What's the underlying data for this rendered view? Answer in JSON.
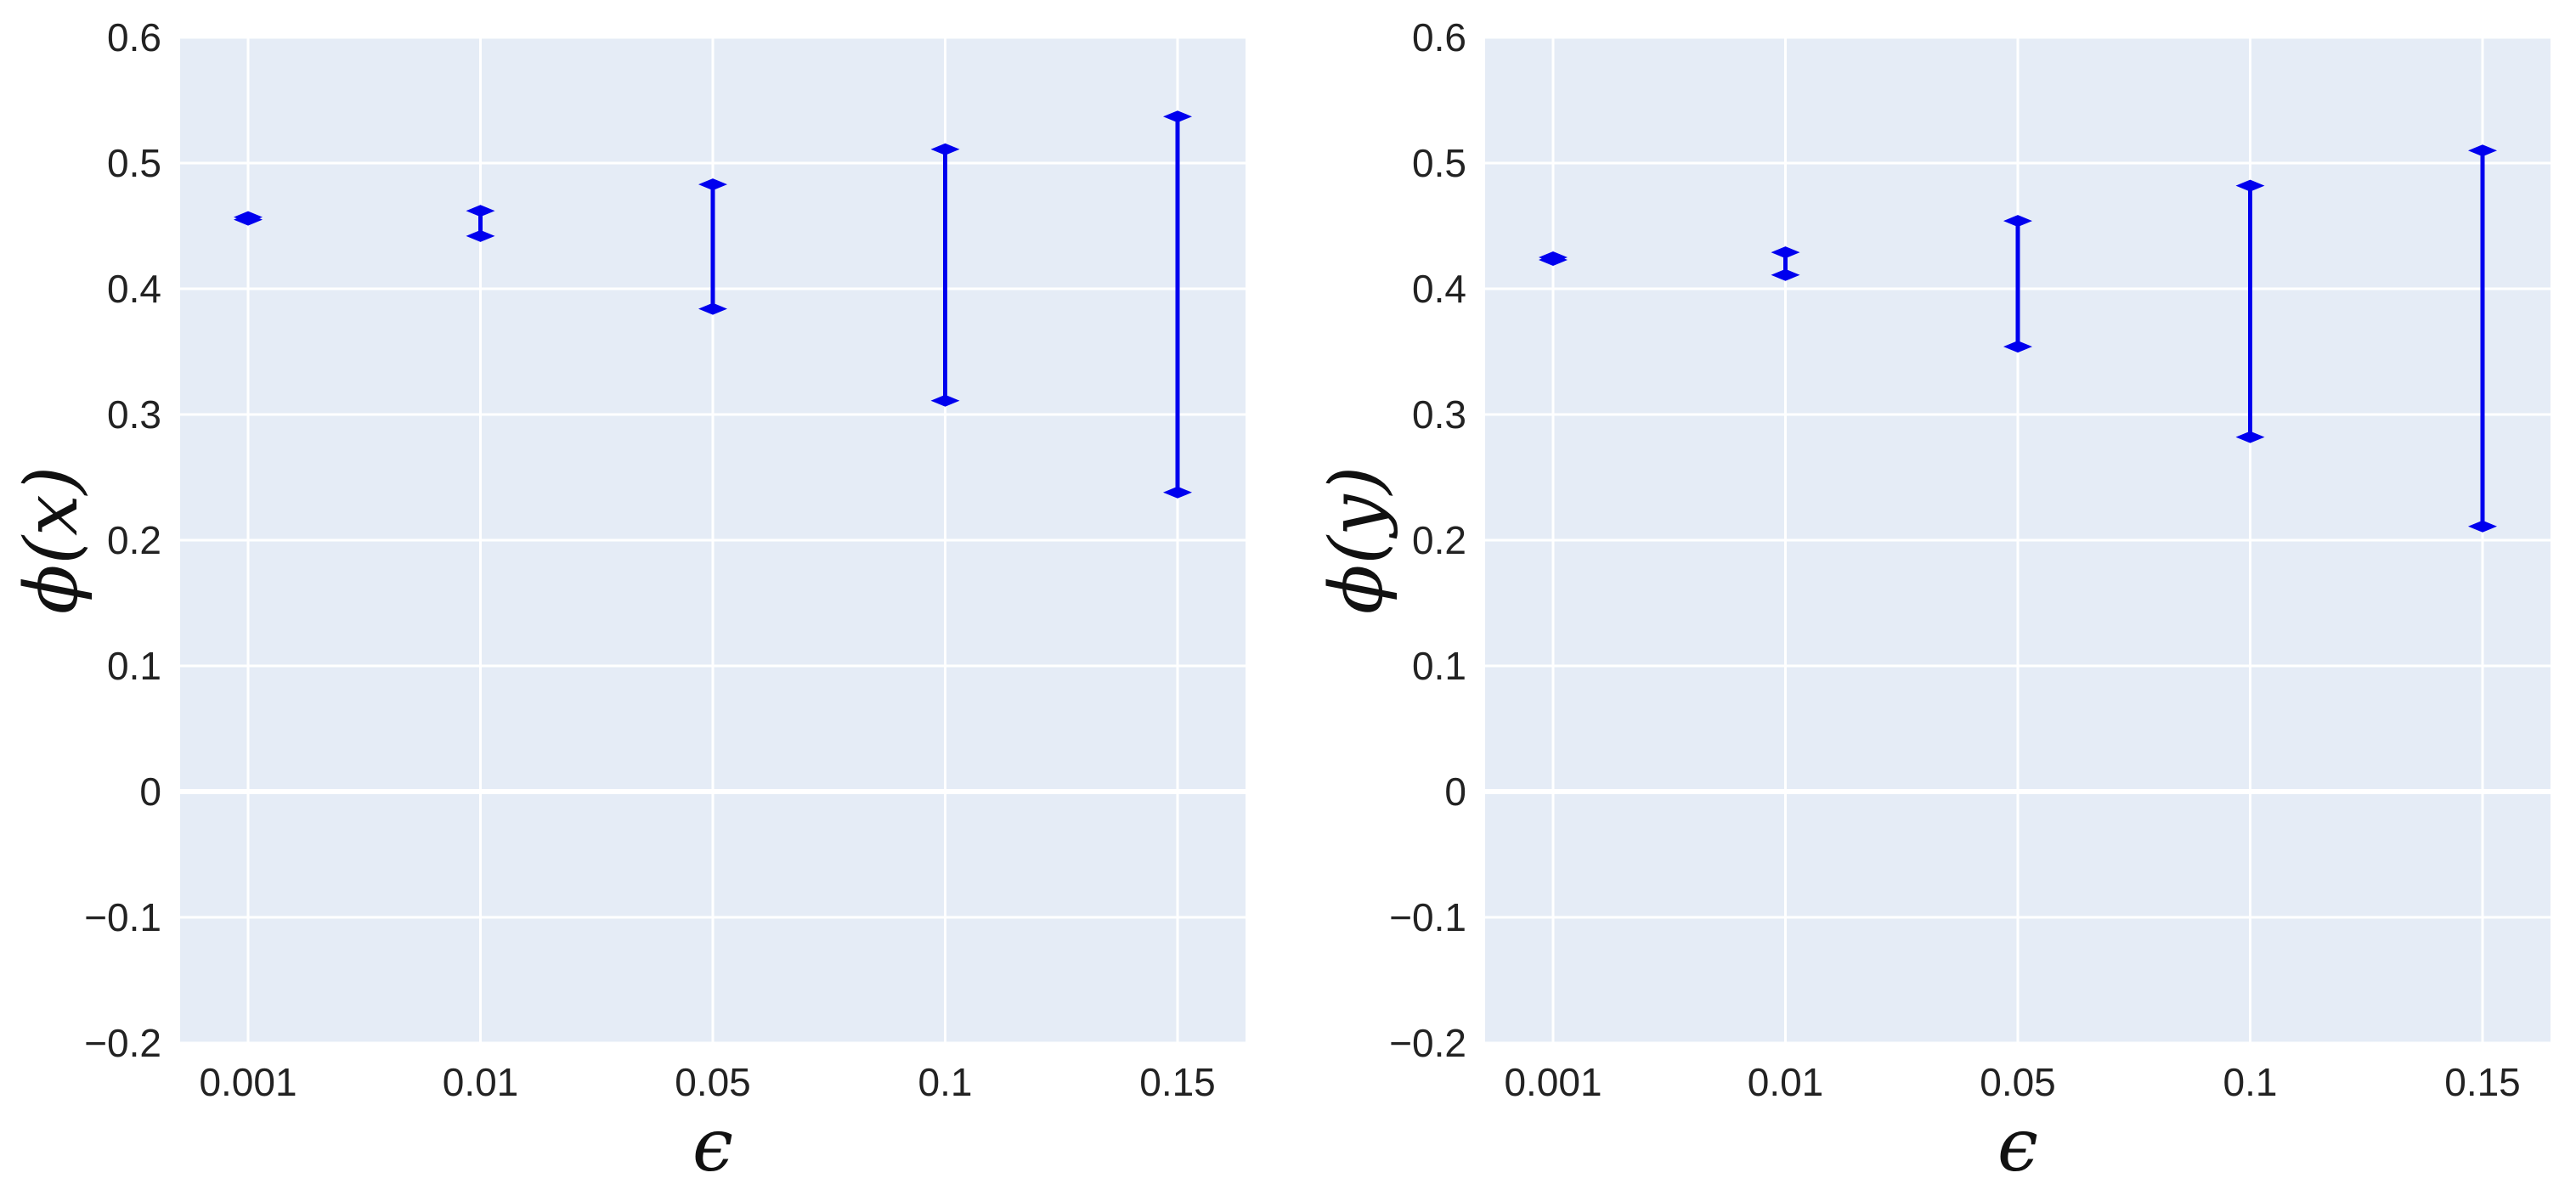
{
  "colors": {
    "background": "#ffffff",
    "plot_background": "#e5ecf6",
    "grid": "#ffffff",
    "series": "#0000ee",
    "text": "#222222"
  },
  "chart_data": [
    {
      "type": "errorbar",
      "xlabel": "ϵ",
      "ylabel": "ϕ(x)",
      "categories": [
        "0.001",
        "0.01",
        "0.05",
        "0.1",
        "0.15"
      ],
      "ylim": [
        -0.2,
        0.6
      ],
      "yticks": [
        "0.6",
        "0.5",
        "0.4",
        "0.3",
        "0.2",
        "0.1",
        "0",
        "−0.1",
        "−0.2"
      ],
      "grid": true,
      "series": [
        {
          "lower": [
            0.455,
            0.442,
            0.384,
            0.311,
            0.238
          ],
          "upper": [
            0.457,
            0.462,
            0.483,
            0.511,
            0.537
          ]
        }
      ]
    },
    {
      "type": "errorbar",
      "xlabel": "ϵ",
      "ylabel": "ϕ(y)",
      "categories": [
        "0.001",
        "0.01",
        "0.05",
        "0.1",
        "0.15"
      ],
      "ylim": [
        -0.2,
        0.6
      ],
      "yticks": [
        "0.6",
        "0.5",
        "0.4",
        "0.3",
        "0.2",
        "0.1",
        "0",
        "−0.1",
        "−0.2"
      ],
      "grid": true,
      "series": [
        {
          "lower": [
            0.423,
            0.411,
            0.354,
            0.282,
            0.211
          ],
          "upper": [
            0.425,
            0.429,
            0.454,
            0.482,
            0.51
          ]
        }
      ]
    }
  ]
}
